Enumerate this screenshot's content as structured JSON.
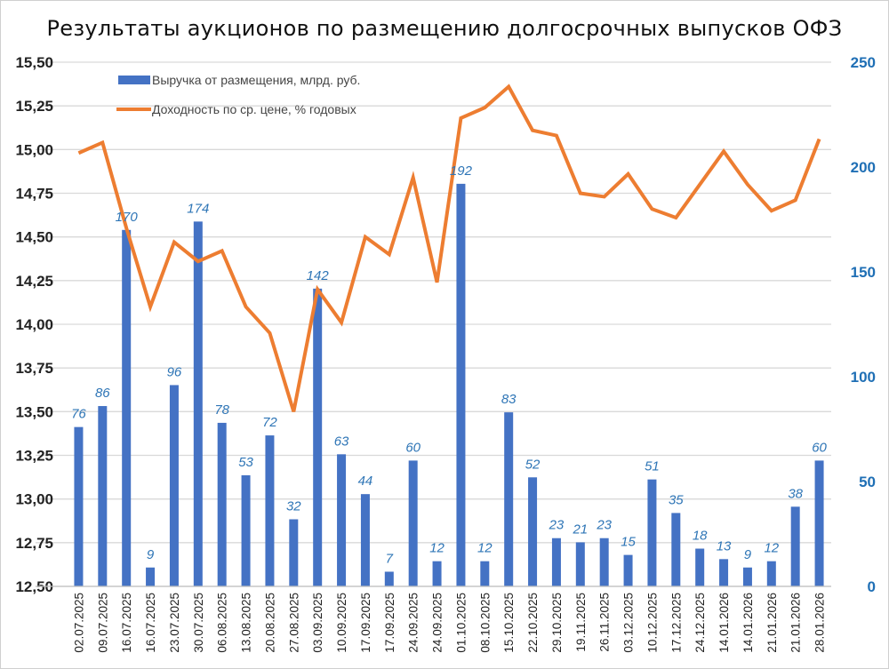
{
  "chart_data": {
    "type": "bar+line",
    "title": "Результаты аукционов по размещению долгосрочных выпусков ОФЗ",
    "categories": [
      "02.07.2025",
      "09.07.2025",
      "16.07.2025",
      "16.07.2025",
      "23.07.2025",
      "30.07.2025",
      "06.08.2025",
      "13.08.2025",
      "20.08.2025",
      "27.08.2025",
      "03.09.2025",
      "10.09.2025",
      "17.09.2025",
      "17.09.2025",
      "24.09.2025",
      "24.09.2025",
      "01.10.2025",
      "08.10.2025",
      "15.10.2025",
      "22.10.2025",
      "29.10.2025",
      "19.11.2025",
      "26.11.2025",
      "03.12.2025",
      "10.12.2025",
      "17.12.2025",
      "24.12.2025",
      "14.01.2026",
      "14.01.2026",
      "21.01.2026",
      "21.01.2026",
      "28.01.2026"
    ],
    "series": [
      {
        "name": "Выручка от размещения, млрд. руб.",
        "type": "bar",
        "axis": "right",
        "color": "#4472C4",
        "values": [
          76,
          86,
          170,
          9,
          96,
          174,
          78,
          53,
          72,
          32,
          142,
          63,
          44,
          7,
          60,
          12,
          192,
          12,
          83,
          52,
          23,
          21,
          23,
          15,
          51,
          35,
          18,
          13,
          9,
          12,
          38,
          60
        ],
        "data_labels": [
          "76",
          "86",
          "170",
          "9",
          "96",
          "174",
          "78",
          "53",
          "72",
          "32",
          "142",
          "63",
          "44",
          "7",
          "60",
          "12",
          "192",
          "12",
          "83",
          "52",
          "23",
          "21",
          "23",
          "15",
          "51",
          "35",
          "18",
          "13",
          "9",
          "12",
          "38",
          "60"
        ]
      },
      {
        "name": "Доходность по ср. цене, % годовых",
        "type": "line",
        "axis": "left",
        "color": "#ED7D31",
        "values": [
          14.98,
          15.04,
          14.55,
          14.1,
          14.47,
          14.36,
          14.42,
          14.1,
          13.95,
          13.5,
          14.2,
          14.01,
          14.5,
          14.4,
          14.84,
          14.24,
          15.18,
          15.24,
          15.36,
          15.11,
          15.08,
          14.75,
          14.73,
          14.86,
          14.66,
          14.61,
          14.8,
          14.99,
          14.8,
          14.65,
          14.71,
          15.06
        ]
      }
    ],
    "left_axis": {
      "ylim": [
        12.5,
        15.5
      ],
      "ticks": [
        "12,50",
        "12,75",
        "13,00",
        "13,25",
        "13,50",
        "13,75",
        "14,00",
        "14,25",
        "14,50",
        "14,75",
        "15,00",
        "15,25",
        "15,50"
      ]
    },
    "right_axis": {
      "ylim": [
        0,
        250
      ],
      "ticks": [
        "0",
        "50",
        "100",
        "150",
        "200",
        "250"
      ],
      "color": "#1F6FB5"
    },
    "grid": true,
    "legend": "top-left"
  }
}
